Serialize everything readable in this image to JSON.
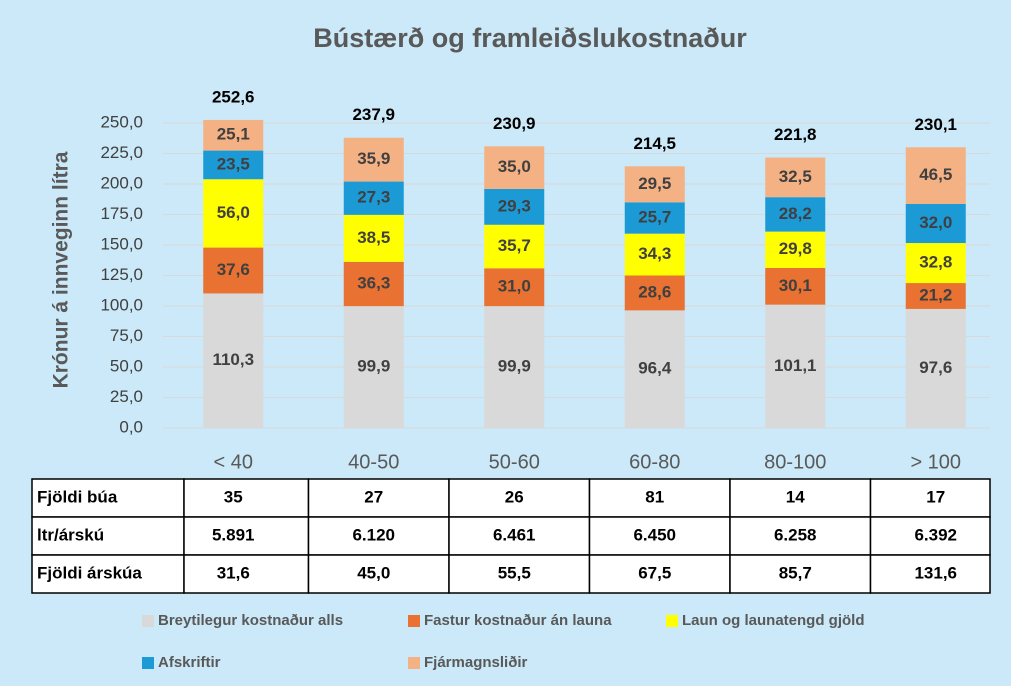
{
  "chart_data": {
    "type": "stacked_bar",
    "title": "Bústærð og framleiðslukostnaður",
    "y_label": "Krónur á innveginn lítra",
    "categories": [
      "< 40",
      "40-50",
      "50-60",
      "60-80",
      "80-100",
      "> 100"
    ],
    "series": [
      {
        "name": "Breytilegur kostnaður alls",
        "color": "#d9d9d9",
        "values": [
          110.3,
          99.9,
          99.9,
          96.4,
          101.1,
          97.6
        ],
        "value_labels": [
          "110,3",
          "99,9",
          "99,9",
          "96,4",
          "101,1",
          "97,6"
        ]
      },
      {
        "name": "Fastur kostnaður án launa",
        "color": "#e97132",
        "values": [
          37.6,
          36.3,
          31.0,
          28.6,
          30.1,
          21.2
        ],
        "value_labels": [
          "37,6",
          "36,3",
          "31,0",
          "28,6",
          "30,1",
          "21,2"
        ]
      },
      {
        "name": "Laun og launatengd gjöld",
        "color": "#ffff00",
        "values": [
          56.0,
          38.5,
          35.7,
          34.3,
          29.8,
          32.8
        ],
        "value_labels": [
          "56,0",
          "38,5",
          "35,7",
          "34,3",
          "29,8",
          "32,8"
        ]
      },
      {
        "name": "Afskriftir",
        "color": "#1b9ad6",
        "values": [
          23.5,
          27.3,
          29.3,
          25.7,
          28.2,
          32.0
        ],
        "value_labels": [
          "23,5",
          "27,3",
          "29,3",
          "25,7",
          "28,2",
          "32,0"
        ]
      },
      {
        "name": "Fjármagnsliðir",
        "color": "#f4b183",
        "values": [
          25.1,
          35.9,
          35.0,
          29.5,
          32.5,
          46.5
        ],
        "value_labels": [
          "25,1",
          "35,9",
          "35,0",
          "29,5",
          "32,5",
          "46,5"
        ]
      }
    ],
    "totals": {
      "values": [
        252.6,
        237.9,
        230.9,
        214.5,
        221.8,
        230.1
      ],
      "value_labels": [
        "252,6",
        "237,9",
        "230,9",
        "214,5",
        "221,8",
        "230,1"
      ]
    },
    "ylim": [
      0,
      250
    ],
    "yticks": [
      {
        "value": 0,
        "label": "0,0"
      },
      {
        "value": 25,
        "label": "25,0"
      },
      {
        "value": 50,
        "label": "50,0"
      },
      {
        "value": 75,
        "label": "75,0"
      },
      {
        "value": 100,
        "label": "100,0"
      },
      {
        "value": 125,
        "label": "125,0"
      },
      {
        "value": 150,
        "label": "150,0"
      },
      {
        "value": 175,
        "label": "175,0"
      },
      {
        "value": 200,
        "label": "200,0"
      },
      {
        "value": 225,
        "label": "225,0"
      },
      {
        "value": 250,
        "label": "250,0"
      }
    ],
    "grid": true,
    "table": {
      "rows": [
        {
          "label": "Fjöldi búa",
          "cells": [
            "35",
            "27",
            "26",
            "81",
            "14",
            "17"
          ]
        },
        {
          "label": "ltr/árskú",
          "cells": [
            "5.891",
            "6.120",
            "6.461",
            "6.450",
            "6.258",
            "6.392"
          ]
        },
        {
          "label": "Fjöldi árskúa",
          "cells": [
            "31,6",
            "45,0",
            "55,5",
            "67,5",
            "85,7",
            "131,6"
          ]
        }
      ]
    }
  }
}
